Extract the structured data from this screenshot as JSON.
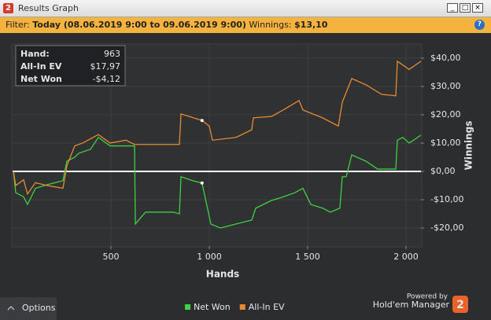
{
  "window": {
    "title": "Results Graph",
    "icon": "2"
  },
  "filter": {
    "label": "Filter:",
    "range": "Today (08.06.2019 9:00 to 09.06.2019 9:00)",
    "winnings_label": "Winnings:",
    "winnings": "$13,10",
    "help": "?"
  },
  "chart_data": {
    "type": "line",
    "x_label": "Hands",
    "y_label": "Winnings",
    "xlim": [
      0,
      2076
    ],
    "xticks": [
      500,
      {
        "value": 1000,
        "label": "1 000"
      },
      {
        "value": 1500,
        "label": "1 500"
      },
      {
        "value": 2000,
        "label": "2 000"
      }
    ],
    "ylim": [
      -26.4,
      44.7
    ],
    "yticks": [
      {
        "value": -20,
        "label": "-$20,00"
      },
      {
        "value": -10,
        "label": "-$10,00"
      },
      {
        "value": 0,
        "label": "$0,00"
      },
      {
        "value": 10,
        "label": "$10,00"
      },
      {
        "value": 20,
        "label": "$20,00"
      },
      {
        "value": 30,
        "label": "$30,00"
      },
      {
        "value": 40,
        "label": "$40,00"
      }
    ],
    "grid": true,
    "reference_line": 0,
    "series": [
      {
        "name": "Net Won",
        "color": "#3fd13f",
        "x": [
          4,
          16,
          56,
          76,
          116,
          176,
          256,
          276,
          316,
          336,
          396,
          436,
          496,
          576,
          620,
          624,
          676,
          736,
          816,
          848,
          856,
          916,
          963,
          1008,
          1056,
          1136,
          1216,
          1236,
          1316,
          1376,
          1436,
          1476,
          1516,
          1576,
          1616,
          1664,
          1676,
          1696,
          1724,
          1796,
          1856,
          1916,
          1948,
          1956,
          1984,
          2016,
          2076
        ],
        "values": [
          0,
          -7.5,
          -9,
          -11.7,
          -6,
          -4.7,
          -3.3,
          3.6,
          5,
          6.4,
          7.8,
          12,
          9,
          9,
          9,
          -18.6,
          -14.4,
          -14.4,
          -14.4,
          -15,
          -1.9,
          -3.3,
          -4.12,
          -18.6,
          -20,
          -18.6,
          -17.2,
          -13,
          -10.3,
          -9,
          -7.5,
          -6,
          -11.7,
          -13,
          -14.4,
          -13,
          -1.9,
          -1.9,
          5.8,
          3.6,
          0.8,
          0.8,
          0.8,
          11,
          12,
          10,
          12.8
        ]
      },
      {
        "name": "All-In EV",
        "color": "#e88a2e",
        "x": [
          4,
          16,
          56,
          76,
          116,
          176,
          256,
          276,
          316,
          356,
          436,
          496,
          576,
          620,
          696,
          796,
          848,
          856,
          963,
          1000,
          1016,
          1136,
          1216,
          1224,
          1316,
          1376,
          1456,
          1476,
          1576,
          1656,
          1676,
          1724,
          1796,
          1876,
          1948,
          1956,
          2016,
          2076
        ],
        "values": [
          0,
          -5,
          -3,
          -8,
          -4,
          -5,
          -6,
          2,
          9,
          10,
          13,
          10,
          11,
          9.5,
          9.5,
          9.5,
          9.5,
          20.3,
          17.97,
          16,
          11,
          12,
          14.7,
          18.9,
          19.4,
          21.7,
          25,
          21.7,
          18.9,
          16,
          24.4,
          32.8,
          30.6,
          27.2,
          26.7,
          38.9,
          36,
          38.9
        ]
      }
    ],
    "hover": [
      {
        "label": "Hand:",
        "value": 963
      },
      {
        "label": "All-In EV",
        "value": 17.97,
        "value_label": "$17,97"
      },
      {
        "label": "Net Won",
        "value": -4.12,
        "value_label": "-$4,12"
      }
    ]
  },
  "footer": {
    "options": "Options",
    "powered_by": "Powered by",
    "brand": "Hold'em Manager",
    "logo": "2"
  }
}
